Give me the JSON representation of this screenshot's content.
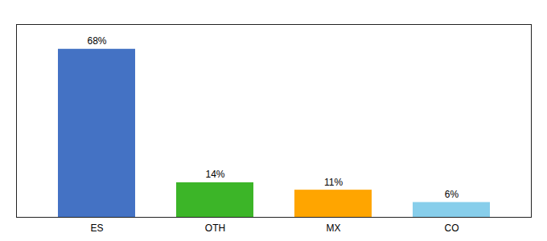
{
  "chart_data": {
    "type": "bar",
    "categories": [
      "ES",
      "OTH",
      "MX",
      "CO"
    ],
    "values": [
      68,
      14,
      11,
      6
    ],
    "value_labels": [
      "68%",
      "14%",
      "11%",
      "6%"
    ],
    "colors": [
      "#4472C4",
      "#3CB528",
      "#FFA500",
      "#87CEEB"
    ],
    "ylim": [
      0,
      78
    ],
    "data_labels": true,
    "tick_labels": "x",
    "grid": false
  }
}
